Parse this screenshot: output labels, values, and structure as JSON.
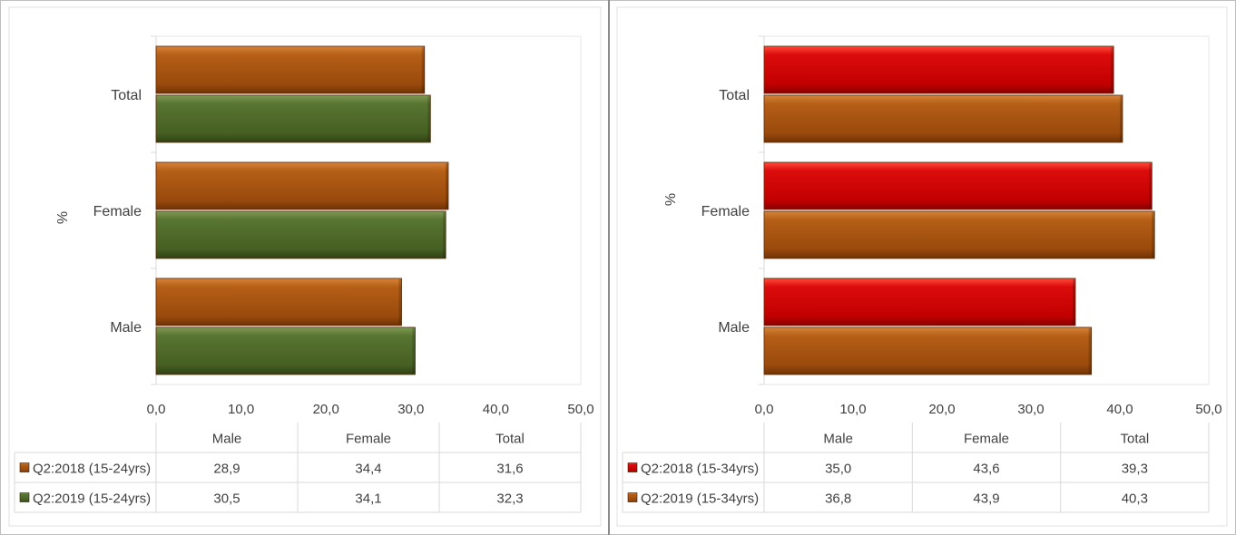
{
  "chart_data": [
    {
      "type": "bar",
      "orientation": "horizontal",
      "title": "",
      "ylabel": "%",
      "xlabel": "",
      "xlim": [
        0,
        50
      ],
      "x_ticks": [
        "0,0",
        "10,0",
        "20,0",
        "30,0",
        "40,0",
        "50,0"
      ],
      "categories": [
        "Male",
        "Female",
        "Total"
      ],
      "series": [
        {
          "name": "Q2:2018 (15-24yrs)",
          "values": [
            28.9,
            34.4,
            31.6
          ],
          "labels": [
            "28,9",
            "34,4",
            "31,6"
          ],
          "color": "#a8540f"
        },
        {
          "name": "Q2:2019 (15-24yrs)",
          "values": [
            30.5,
            34.1,
            32.3
          ],
          "labels": [
            "30,5",
            "34,1",
            "32,3"
          ],
          "color": "#4f6b28"
        }
      ],
      "grid": false,
      "data_table": true
    },
    {
      "type": "bar",
      "orientation": "horizontal",
      "title": "",
      "ylabel": "%",
      "xlabel": "",
      "xlim": [
        0,
        50
      ],
      "x_ticks": [
        "0,0",
        "10,0",
        "20,0",
        "30,0",
        "40,0",
        "50,0"
      ],
      "categories": [
        "Male",
        "Female",
        "Total"
      ],
      "series": [
        {
          "name": "Q2:2018 (15-34yrs)",
          "values": [
            35.0,
            43.6,
            39.3
          ],
          "labels": [
            "35,0",
            "43,6",
            "39,3"
          ],
          "color": "#cc0000"
        },
        {
          "name": "Q2:2019 (15-34yrs)",
          "values": [
            36.8,
            43.9,
            40.3
          ],
          "labels": [
            "36,8",
            "43,9",
            "40,3"
          ],
          "color": "#a8540f"
        }
      ],
      "grid": false,
      "data_table": true
    }
  ]
}
